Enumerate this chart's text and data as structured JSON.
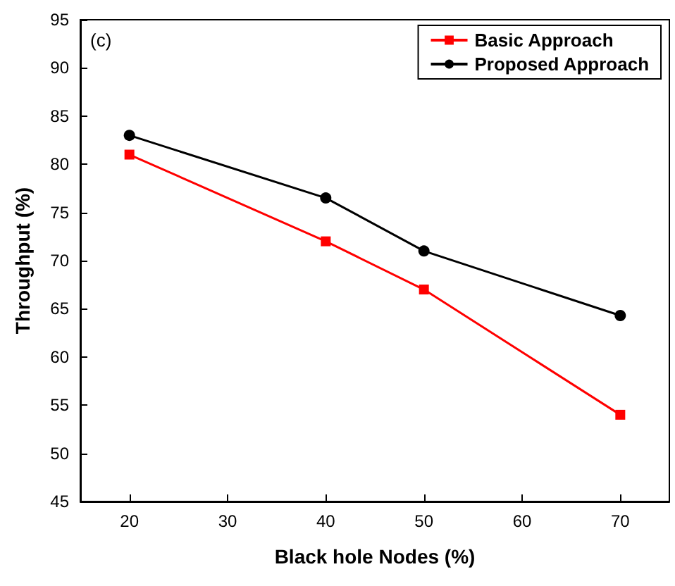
{
  "chart_data": {
    "type": "line",
    "xlabel": "Black hole Nodes (%)",
    "ylabel": "Throughput (%)",
    "annotations": [
      "(c)"
    ],
    "x": [
      20,
      40,
      50,
      70
    ],
    "series": [
      {
        "name": "Basic Approach",
        "color": "#ff0000",
        "marker": "square",
        "values": [
          81,
          72,
          67,
          54
        ]
      },
      {
        "name": "Proposed Approach",
        "color": "#000000",
        "marker": "circle",
        "values": [
          83,
          76.5,
          71,
          64.3
        ]
      }
    ],
    "xlim": [
      15,
      75
    ],
    "xticks": [
      20,
      30,
      40,
      50,
      60,
      70
    ],
    "ylim": [
      45,
      95
    ],
    "yticks": [
      45,
      50,
      55,
      60,
      65,
      70,
      75,
      80,
      85,
      90,
      95
    ],
    "grid": false,
    "legend": "top right",
    "line_style": "solid"
  }
}
